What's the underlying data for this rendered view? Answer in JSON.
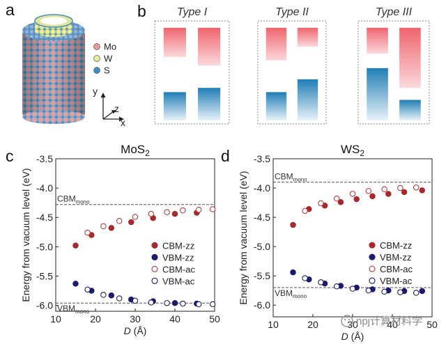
{
  "panel_labels": {
    "a": "a",
    "b": "b",
    "c": "c",
    "d": "d"
  },
  "panel_a": {
    "legend": [
      {
        "label": "Mo",
        "color": "#e89a9a"
      },
      {
        "label": "W",
        "color": "#e6ec9a"
      },
      {
        "label": "S",
        "color": "#3d8fc9"
      }
    ],
    "axes": {
      "y": "y",
      "z": "z",
      "x": "x"
    }
  },
  "panel_b": {
    "types": [
      {
        "label": "Type I",
        "cbm_left": [
          0.28,
          0.62
        ],
        "cbm_right": [
          0.28,
          0.72
        ],
        "vbm_left": [
          1.03,
          1.36
        ],
        "vbm_right": [
          0.98,
          1.36
        ]
      },
      {
        "label": "Type II",
        "cbm_left": [
          0.28,
          0.66
        ],
        "cbm_right": [
          0.28,
          0.5
        ],
        "vbm_left": [
          1.03,
          1.36
        ],
        "vbm_right": [
          0.88,
          1.36
        ]
      },
      {
        "label": "Type III",
        "cbm_left": [
          0.28,
          0.58
        ],
        "cbm_right": [
          0.28,
          0.98
        ],
        "vbm_left": [
          0.75,
          1.36
        ],
        "vbm_right": [
          1.12,
          1.36
        ]
      }
    ],
    "colors": {
      "cbm": "#f06a72",
      "vbm": "#1f7db5"
    }
  },
  "chart_data": [
    {
      "type": "scatter",
      "title": "MoS",
      "title_sub": "2",
      "xlabel": "D",
      "xlabel_unit": " (Å)",
      "ylabel": "Energy from vacuum level (eV)",
      "xlim": [
        10,
        50
      ],
      "ylim": [
        -6.1,
        -3.5
      ],
      "xticks": [
        "10",
        "20",
        "30",
        "40",
        "50"
      ],
      "yticks": [
        "-3.5",
        "-4.0",
        "-4.5",
        "-5.0",
        "-5.5",
        "-6.0"
      ],
      "ref_lines": [
        {
          "name": "CBM",
          "sub": "mono",
          "y": -4.28
        },
        {
          "name": "VBM",
          "sub": "mono",
          "y": -5.96
        }
      ],
      "legend": [
        "CBM-zz",
        "VBM-zz",
        "CBM-ac",
        "VBM-ac"
      ],
      "series": [
        {
          "name": "CBM-zz",
          "color": "#a8282b",
          "filled": true,
          "x": [
            15.0,
            19.0,
            24.0,
            29.0,
            34.5,
            40.0,
            45.5
          ],
          "y": [
            -4.98,
            -4.8,
            -4.68,
            -4.58,
            -4.51,
            -4.44,
            -4.42
          ]
        },
        {
          "name": "VBM-zz",
          "color": "#1a1a6e",
          "filled": true,
          "x": [
            15.0,
            19.0,
            24.0,
            29.0,
            34.5,
            40.0,
            45.5
          ],
          "y": [
            -5.63,
            -5.75,
            -5.83,
            -5.9,
            -5.93,
            -5.96,
            -5.97
          ]
        },
        {
          "name": "CBM-ac",
          "color": "#c0393b",
          "filled": false,
          "x": [
            18.0,
            22.0,
            26.0,
            30.0,
            34.0,
            38.0,
            42.0,
            46.0,
            49.5
          ],
          "y": [
            -4.76,
            -4.65,
            -4.56,
            -4.49,
            -4.44,
            -4.41,
            -4.38,
            -4.37,
            -4.36
          ]
        },
        {
          "name": "VBM-ac",
          "color": "#1a1a6e",
          "filled": false,
          "x": [
            18.0,
            22.0,
            26.0,
            30.0,
            34.0,
            38.0,
            42.0,
            46.0,
            49.5
          ],
          "y": [
            -5.73,
            -5.82,
            -5.88,
            -5.92,
            -5.95,
            -5.96,
            -5.97,
            -5.98,
            -5.98
          ]
        }
      ]
    },
    {
      "type": "scatter",
      "title": "WS",
      "title_sub": "2",
      "xlabel": "D",
      "xlabel_unit": " (Å)",
      "ylabel": "Energy from vacuum level (eV)",
      "xlim": [
        10,
        50
      ],
      "ylim": [
        -6.2,
        -3.5
      ],
      "xticks": [
        "10",
        "20",
        "30",
        "40",
        "50"
      ],
      "yticks": [
        "-3.5",
        "-4.0",
        "-4.5",
        "-5.0",
        "-5.5",
        "-6.0"
      ],
      "ref_lines": [
        {
          "name": "CBM",
          "sub": "mono",
          "y": -3.9
        },
        {
          "name": "VBM",
          "sub": "mono",
          "y": -5.7
        }
      ],
      "legend": [
        "CBM-zz",
        "VBM-zz",
        "CBM-ac",
        "VBM-ac"
      ],
      "series": [
        {
          "name": "CBM-zz",
          "color": "#a8282b",
          "filled": true,
          "x": [
            15.0,
            19.0,
            23.0,
            27.0,
            31.0,
            35.0,
            39.0,
            43.0,
            47.5
          ],
          "y": [
            -4.63,
            -4.36,
            -4.3,
            -4.24,
            -4.19,
            -4.14,
            -4.1,
            -4.07,
            -4.04
          ]
        },
        {
          "name": "VBM-zz",
          "color": "#1a1a6e",
          "filled": true,
          "x": [
            15.0,
            19.0,
            23.0,
            27.0,
            31.0,
            35.0,
            39.0,
            43.0,
            47.5
          ],
          "y": [
            -5.44,
            -5.56,
            -5.63,
            -5.67,
            -5.7,
            -5.73,
            -5.75,
            -5.76,
            -5.76
          ]
        },
        {
          "name": "CBM-ac",
          "color": "#c0393b",
          "filled": false,
          "x": [
            18.0,
            22.0,
            26.0,
            30.0,
            34.0,
            38.0,
            42.0,
            46.0
          ],
          "y": [
            -4.39,
            -4.26,
            -4.18,
            -4.1,
            -4.05,
            -4.02,
            -4.0,
            -3.99
          ]
        },
        {
          "name": "VBM-ac",
          "color": "#1a1a6e",
          "filled": false,
          "x": [
            18.0,
            22.0,
            26.0,
            30.0,
            34.0,
            38.0,
            42.0,
            46.0
          ],
          "y": [
            -5.54,
            -5.61,
            -5.68,
            -5.72,
            -5.75,
            -5.77,
            -5.78,
            -5.79
          ]
        }
      ]
    }
  ],
  "watermark": "npj计算材料学"
}
